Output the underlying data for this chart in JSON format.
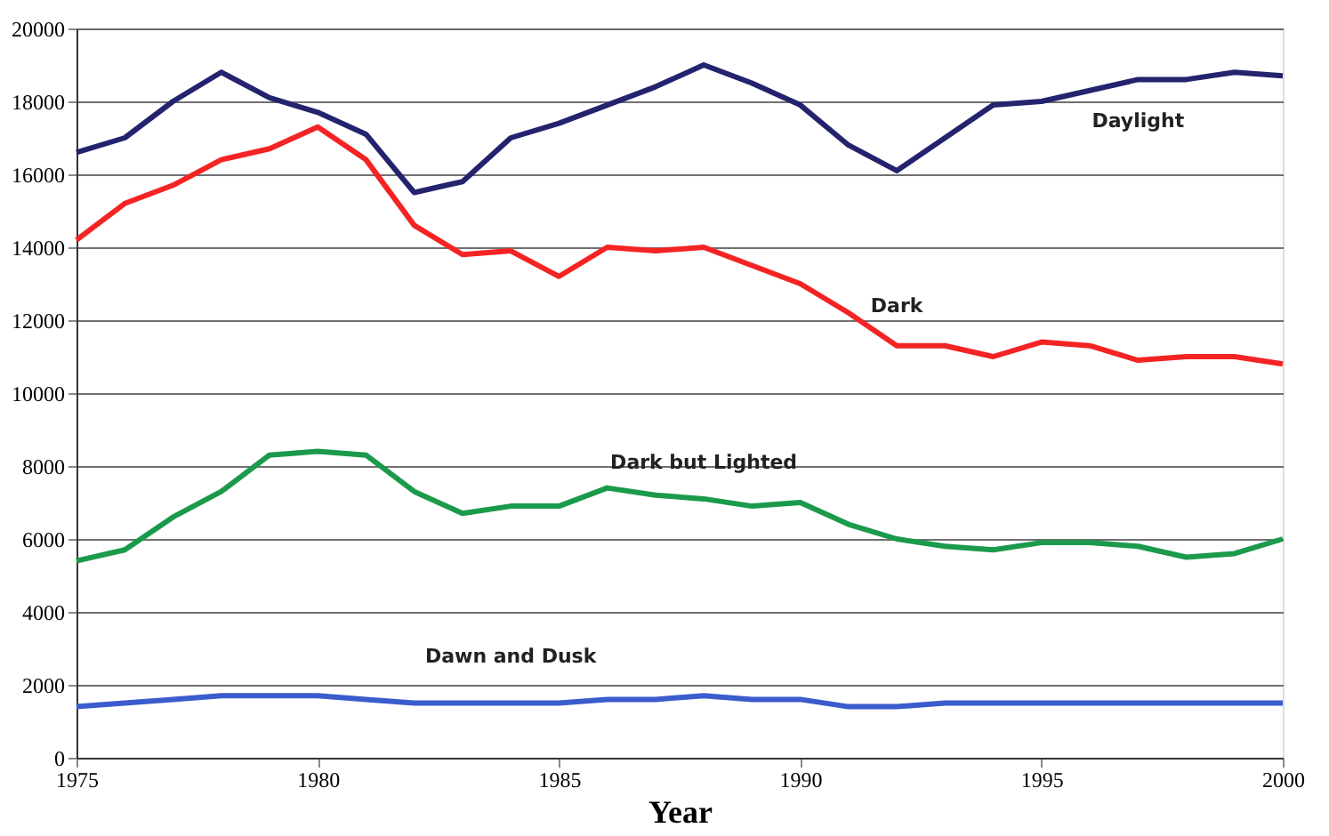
{
  "chart_data": {
    "type": "line",
    "xlabel": "Year",
    "x": [
      1975,
      1976,
      1977,
      1978,
      1979,
      1980,
      1981,
      1982,
      1983,
      1984,
      1985,
      1986,
      1987,
      1988,
      1989,
      1990,
      1991,
      1992,
      1993,
      1994,
      1995,
      1996,
      1997,
      1998,
      1999,
      2000
    ],
    "series": [
      {
        "name": "Daylight",
        "color": "#23236e",
        "values": [
          16600,
          17000,
          18000,
          18800,
          18100,
          17700,
          17100,
          15500,
          15800,
          17000,
          17400,
          17900,
          18400,
          19000,
          18500,
          17900,
          16800,
          16100,
          17000,
          17900,
          18000,
          18300,
          18600,
          18600,
          18800,
          18700
        ]
      },
      {
        "name": "Dark",
        "color": "#f42424",
        "values": [
          14200,
          15200,
          15700,
          16400,
          16700,
          17300,
          16400,
          14600,
          13800,
          13900,
          13200,
          14000,
          13900,
          14000,
          13500,
          13000,
          12200,
          11300,
          11300,
          11000,
          11400,
          11300,
          10900,
          11000,
          11000,
          10800
        ]
      },
      {
        "name": "Dark but Lighted",
        "color": "#1b9a4c",
        "values": [
          5400,
          5700,
          6600,
          7300,
          8300,
          8400,
          8300,
          7300,
          6700,
          6900,
          6900,
          7400,
          7200,
          7100,
          6900,
          7000,
          6400,
          6000,
          5800,
          5700,
          5900,
          5900,
          5800,
          5500,
          5600,
          6000
        ]
      },
      {
        "name": "Dawn and Dusk",
        "color": "#3a5ccc",
        "values": [
          1400,
          1500,
          1600,
          1700,
          1700,
          1700,
          1600,
          1500,
          1500,
          1500,
          1500,
          1600,
          1600,
          1700,
          1600,
          1600,
          1400,
          1400,
          1500,
          1500,
          1500,
          1500,
          1500,
          1500,
          1500,
          1500
        ]
      }
    ],
    "xlim": [
      1975,
      2000
    ],
    "xticks": [
      1975,
      1980,
      1985,
      1990,
      1995,
      2000
    ],
    "ylim": [
      0,
      20000
    ],
    "yticks": [
      0,
      2000,
      4000,
      6000,
      8000,
      10000,
      12000,
      14000,
      16000,
      18000,
      20000
    ],
    "grid": "y",
    "legend": false,
    "marker": "none",
    "line_style": "solid"
  }
}
